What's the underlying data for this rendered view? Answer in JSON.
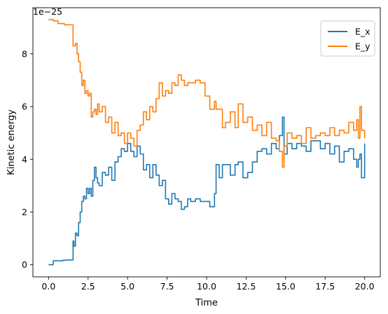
{
  "chart_data": {
    "type": "line",
    "title": "",
    "xlabel": "Time",
    "ylabel": "Kinetic energy",
    "offset_text": "1e−25",
    "xlim": [
      -0.99,
      20.99
    ],
    "ylim": [
      -0.46,
      9.75
    ],
    "xticks": [
      0.0,
      2.5,
      5.0,
      7.5,
      10.0,
      12.5,
      15.0,
      17.5,
      20.0
    ],
    "xtick_labels": [
      "0.0",
      "2.5",
      "5.0",
      "7.5",
      "10.0",
      "12.5",
      "15.0",
      "17.5",
      "20.0"
    ],
    "yticks": [
      0,
      2,
      4,
      6,
      8
    ],
    "ytick_labels": [
      "0",
      "2",
      "4",
      "6",
      "8"
    ],
    "grid": false,
    "legend_position": "upper right",
    "series": [
      {
        "name": "E_x",
        "color": "#1f77b4",
        "x": [
          0.0,
          0.15,
          0.3,
          0.5,
          0.7,
          0.9,
          1.1,
          1.3,
          1.5,
          1.55,
          1.6,
          1.7,
          1.8,
          1.9,
          2.0,
          2.1,
          2.2,
          2.3,
          2.4,
          2.5,
          2.6,
          2.7,
          2.8,
          2.9,
          3.0,
          3.1,
          3.2,
          3.4,
          3.6,
          3.8,
          4.0,
          4.2,
          4.4,
          4.6,
          4.8,
          5.0,
          5.2,
          5.4,
          5.6,
          5.8,
          6.0,
          6.2,
          6.4,
          6.6,
          6.8,
          7.0,
          7.2,
          7.4,
          7.6,
          7.8,
          8.0,
          8.2,
          8.4,
          8.6,
          8.8,
          9.0,
          9.3,
          9.6,
          9.9,
          10.2,
          10.5,
          10.6,
          10.8,
          11.0,
          11.2,
          11.5,
          11.8,
          12.0,
          12.3,
          12.6,
          12.9,
          13.2,
          13.5,
          13.8,
          14.1,
          14.4,
          14.6,
          14.8,
          14.9,
          15.1,
          15.4,
          15.7,
          16.0,
          16.3,
          16.6,
          16.9,
          17.2,
          17.5,
          17.8,
          18.1,
          18.4,
          18.7,
          19.0,
          19.3,
          19.5,
          19.6,
          19.7,
          19.8,
          20.0
        ],
        "values": [
          0.0,
          0.0,
          0.15,
          0.15,
          0.15,
          0.17,
          0.18,
          0.18,
          0.18,
          0.9,
          0.7,
          1.2,
          1.1,
          1.6,
          2.0,
          2.4,
          2.6,
          2.5,
          2.9,
          2.7,
          2.9,
          2.6,
          3.2,
          3.7,
          3.3,
          3.1,
          3.0,
          3.5,
          3.4,
          3.7,
          3.2,
          3.9,
          4.1,
          4.4,
          4.3,
          4.6,
          4.3,
          4.1,
          4.5,
          4.2,
          3.6,
          3.8,
          3.3,
          3.8,
          3.4,
          3.0,
          3.2,
          2.5,
          2.3,
          2.7,
          2.5,
          2.4,
          2.1,
          2.2,
          2.5,
          2.4,
          2.5,
          2.4,
          2.4,
          2.2,
          2.7,
          3.8,
          3.3,
          3.8,
          3.8,
          3.4,
          3.8,
          3.9,
          3.3,
          3.5,
          3.9,
          4.3,
          4.4,
          4.2,
          4.6,
          4.4,
          4.9,
          5.6,
          4.2,
          4.6,
          4.4,
          4.6,
          4.5,
          4.3,
          4.7,
          4.7,
          4.4,
          4.6,
          4.2,
          4.5,
          3.9,
          4.3,
          4.4,
          4.0,
          3.7,
          4.0,
          4.2,
          3.3,
          4.6
        ]
      },
      {
        "name": "E_y",
        "color": "#ff7f0e",
        "x": [
          0.0,
          0.3,
          0.6,
          1.0,
          1.4,
          1.5,
          1.55,
          1.7,
          1.8,
          1.9,
          2.0,
          2.1,
          2.2,
          2.3,
          2.4,
          2.5,
          2.6,
          2.7,
          2.8,
          2.9,
          3.0,
          3.1,
          3.2,
          3.4,
          3.6,
          3.8,
          4.0,
          4.2,
          4.4,
          4.6,
          4.8,
          5.0,
          5.2,
          5.4,
          5.6,
          5.8,
          6.0,
          6.2,
          6.4,
          6.6,
          6.8,
          7.0,
          7.2,
          7.4,
          7.6,
          7.8,
          8.0,
          8.2,
          8.4,
          8.6,
          8.8,
          9.0,
          9.3,
          9.6,
          9.9,
          10.2,
          10.5,
          10.6,
          10.8,
          11.0,
          11.2,
          11.5,
          11.8,
          12.0,
          12.3,
          12.6,
          12.9,
          13.2,
          13.5,
          13.8,
          14.1,
          14.4,
          14.6,
          14.8,
          14.9,
          15.1,
          15.4,
          15.7,
          16.0,
          16.3,
          16.6,
          16.9,
          17.2,
          17.5,
          17.8,
          18.1,
          18.4,
          18.7,
          19.0,
          19.3,
          19.5,
          19.6,
          19.7,
          19.8,
          20.0
        ],
        "values": [
          9.3,
          9.25,
          9.15,
          9.1,
          9.1,
          9.1,
          8.3,
          8.4,
          8.0,
          7.7,
          7.3,
          6.8,
          7.0,
          6.5,
          6.6,
          6.4,
          6.5,
          5.6,
          5.8,
          5.9,
          5.7,
          6.1,
          5.8,
          6.0,
          5.4,
          5.6,
          5.0,
          5.4,
          4.9,
          5.0,
          4.6,
          5.0,
          4.8,
          4.5,
          5.1,
          5.3,
          5.8,
          5.5,
          6.0,
          5.8,
          6.3,
          6.9,
          6.4,
          6.6,
          6.5,
          6.9,
          6.8,
          7.2,
          7.0,
          6.8,
          6.9,
          6.9,
          7.0,
          6.9,
          6.4,
          5.9,
          6.2,
          5.9,
          5.9,
          5.2,
          5.4,
          5.8,
          5.2,
          6.1,
          5.4,
          5.6,
          5.1,
          5.3,
          4.9,
          5.4,
          4.8,
          4.7,
          4.3,
          3.7,
          4.5,
          5.0,
          4.8,
          4.9,
          4.6,
          5.2,
          4.8,
          4.9,
          5.0,
          4.9,
          5.2,
          4.9,
          5.1,
          5.0,
          5.4,
          5.1,
          5.5,
          4.8,
          6.0,
          5.1,
          4.8
        ]
      }
    ]
  }
}
